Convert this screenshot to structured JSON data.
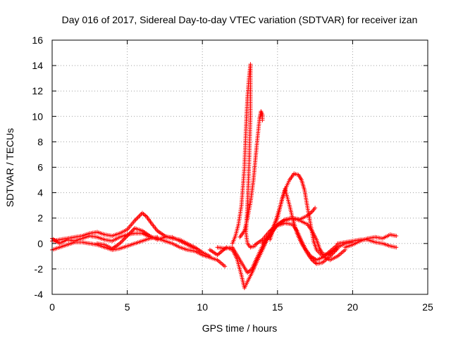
{
  "chart_data": {
    "type": "scatter",
    "title": "Day 016 of 2017, Sidereal Day-to-day VTEC variation (SDTVAR) for receiver izan",
    "xlabel": "GPS time / hours",
    "ylabel": "SDTVAR / TECUs",
    "xlim": [
      0,
      25
    ],
    "ylim": [
      -4,
      16
    ],
    "xticks": [
      0,
      5,
      10,
      15,
      20,
      25
    ],
    "yticks": [
      -4,
      -2,
      0,
      2,
      4,
      6,
      8,
      10,
      12,
      14,
      16
    ],
    "grid": true,
    "marker": "+",
    "color": "#ff0000",
    "series": [
      {
        "name": "trace-1",
        "points": [
          [
            0.0,
            0.2
          ],
          [
            0.5,
            0.3
          ],
          [
            1.0,
            0.4
          ],
          [
            1.5,
            0.5
          ],
          [
            2.0,
            0.6
          ],
          [
            2.5,
            0.8
          ],
          [
            3.0,
            0.9
          ],
          [
            3.5,
            0.7
          ],
          [
            4.0,
            0.6
          ],
          [
            4.5,
            0.8
          ],
          [
            5.0,
            1.1
          ],
          [
            5.5,
            1.8
          ],
          [
            6.0,
            2.4
          ],
          [
            6.3,
            2.1
          ],
          [
            6.6,
            1.6
          ],
          [
            7.0,
            1.0
          ],
          [
            7.5,
            0.6
          ],
          [
            8.0,
            0.4
          ],
          [
            8.5,
            0.3
          ],
          [
            9.0,
            0.0
          ],
          [
            9.5,
            -0.3
          ],
          [
            10.0,
            -0.7
          ],
          [
            10.5,
            -1.0
          ]
        ]
      },
      {
        "name": "trace-2",
        "points": [
          [
            0.0,
            -0.5
          ],
          [
            0.5,
            -0.3
          ],
          [
            1.0,
            -0.1
          ],
          [
            1.5,
            0.1
          ],
          [
            2.0,
            0.1
          ],
          [
            2.5,
            0.0
          ],
          [
            3.0,
            -0.1
          ],
          [
            3.5,
            -0.3
          ],
          [
            4.0,
            -0.5
          ],
          [
            4.5,
            -0.4
          ],
          [
            5.0,
            -0.2
          ],
          [
            5.5,
            0.0
          ],
          [
            6.0,
            0.2
          ],
          [
            6.5,
            0.4
          ],
          [
            7.0,
            0.5
          ]
        ]
      },
      {
        "name": "trace-3",
        "points": [
          [
            0.0,
            0.4
          ],
          [
            0.5,
            0.0
          ],
          [
            1.0,
            0.3
          ],
          [
            1.5,
            0.2
          ],
          [
            2.0,
            0.4
          ],
          [
            2.5,
            0.6
          ],
          [
            3.0,
            0.5
          ],
          [
            3.5,
            0.3
          ],
          [
            4.0,
            0.2
          ],
          [
            4.5,
            0.5
          ],
          [
            5.0,
            0.7
          ],
          [
            5.5,
            0.8
          ],
          [
            6.0,
            0.8
          ],
          [
            6.5,
            0.5
          ],
          [
            7.0,
            0.4
          ],
          [
            7.5,
            0.2
          ],
          [
            8.0,
            0.0
          ],
          [
            8.5,
            -0.3
          ],
          [
            9.0,
            -0.5
          ],
          [
            9.5,
            -0.6
          ],
          [
            10.0,
            -0.9
          ],
          [
            10.5,
            -1.1
          ],
          [
            11.0,
            -1.3
          ],
          [
            11.5,
            -1.8
          ]
        ]
      },
      {
        "name": "trace-4",
        "points": [
          [
            3.0,
            0.0
          ],
          [
            3.5,
            -0.1
          ],
          [
            4.0,
            -0.4
          ],
          [
            4.5,
            0.0
          ],
          [
            5.0,
            0.6
          ],
          [
            5.5,
            1.2
          ],
          [
            6.0,
            1.0
          ],
          [
            6.5,
            0.6
          ],
          [
            7.0,
            0.3
          ],
          [
            7.5,
            0.5
          ],
          [
            8.0,
            0.5
          ],
          [
            8.5,
            0.2
          ],
          [
            9.0,
            -0.1
          ],
          [
            9.5,
            -0.4
          ]
        ]
      },
      {
        "name": "trace-5",
        "points": [
          [
            10.5,
            -0.5
          ],
          [
            11.0,
            -0.9
          ],
          [
            11.3,
            -0.6
          ],
          [
            11.6,
            -0.3
          ],
          [
            12.0,
            -0.5
          ],
          [
            12.3,
            -1.2
          ],
          [
            12.6,
            -2.5
          ],
          [
            12.8,
            -3.5
          ],
          [
            13.0,
            -3.0
          ],
          [
            13.3,
            -2.3
          ],
          [
            13.6,
            -1.5
          ],
          [
            14.0,
            -0.5
          ],
          [
            14.3,
            0.3
          ],
          [
            14.6,
            0.9
          ],
          [
            15.0,
            1.5
          ],
          [
            15.5,
            1.8
          ],
          [
            16.0,
            2.0
          ],
          [
            16.5,
            1.8
          ],
          [
            17.0,
            1.5
          ],
          [
            17.3,
            1.0
          ],
          [
            17.6,
            0.3
          ],
          [
            17.8,
            -0.4
          ],
          [
            18.0,
            -0.8
          ],
          [
            18.3,
            -0.9
          ],
          [
            18.7,
            -0.6
          ],
          [
            19.0,
            -0.3
          ],
          [
            19.5,
            0.0
          ],
          [
            20.0,
            0.1
          ]
        ]
      },
      {
        "name": "trace-6",
        "points": [
          [
            12.0,
            0.0
          ],
          [
            12.2,
            0.6
          ],
          [
            12.4,
            1.5
          ],
          [
            12.6,
            3.0
          ],
          [
            12.8,
            6.0
          ],
          [
            12.9,
            9.0
          ],
          [
            13.0,
            11.5
          ],
          [
            13.1,
            13.0
          ],
          [
            13.2,
            14.1
          ],
          [
            13.2,
            10.0
          ],
          [
            13.1,
            6.0
          ],
          [
            13.0,
            3.0
          ],
          [
            12.9,
            0.8
          ],
          [
            13.0,
            0.0
          ],
          [
            13.2,
            -0.3
          ],
          [
            13.5,
            -0.2
          ]
        ]
      },
      {
        "name": "trace-7",
        "points": [
          [
            12.5,
            0.5
          ],
          [
            12.8,
            1.0
          ],
          [
            13.0,
            2.0
          ],
          [
            13.2,
            3.2
          ],
          [
            13.4,
            5.0
          ],
          [
            13.6,
            7.5
          ],
          [
            13.8,
            9.8
          ],
          [
            13.9,
            10.4
          ],
          [
            14.0,
            10.1
          ],
          [
            14.0,
            9.7
          ]
        ]
      },
      {
        "name": "trace-8",
        "points": [
          [
            11.0,
            -0.3
          ],
          [
            11.5,
            -0.4
          ],
          [
            12.0,
            -0.3
          ],
          [
            12.5,
            -1.3
          ],
          [
            13.0,
            -2.3
          ],
          [
            13.3,
            -2.0
          ],
          [
            13.6,
            -1.2
          ],
          [
            14.0,
            -0.2
          ],
          [
            14.5,
            0.8
          ],
          [
            15.0,
            2.0
          ],
          [
            15.3,
            3.5
          ],
          [
            15.6,
            4.5
          ],
          [
            15.8,
            5.0
          ],
          [
            16.1,
            5.5
          ],
          [
            16.4,
            5.4
          ],
          [
            16.6,
            5.0
          ],
          [
            16.8,
            4.2
          ],
          [
            17.0,
            2.8
          ],
          [
            17.2,
            1.5
          ],
          [
            17.4,
            0.2
          ],
          [
            17.6,
            -0.5
          ],
          [
            18.0,
            -1.0
          ],
          [
            18.5,
            -1.3
          ],
          [
            19.0,
            -1.0
          ],
          [
            19.5,
            -0.5
          ]
        ]
      },
      {
        "name": "trace-9",
        "points": [
          [
            14.5,
            0.3
          ],
          [
            14.8,
            1.5
          ],
          [
            15.2,
            3.0
          ],
          [
            15.5,
            4.3
          ],
          [
            15.8,
            3.0
          ],
          [
            16.0,
            2.0
          ],
          [
            16.3,
            0.8
          ],
          [
            16.6,
            0.0
          ],
          [
            17.0,
            -0.8
          ],
          [
            17.3,
            -1.3
          ],
          [
            17.6,
            -1.6
          ],
          [
            18.0,
            -1.5
          ],
          [
            18.5,
            -1.0
          ],
          [
            19.0,
            -0.4
          ]
        ]
      },
      {
        "name": "trace-10",
        "points": [
          [
            14.0,
            0.0
          ],
          [
            14.5,
            0.6
          ],
          [
            15.0,
            1.5
          ],
          [
            15.5,
            1.9
          ],
          [
            16.0,
            2.0
          ],
          [
            16.5,
            1.9
          ],
          [
            17.0,
            2.2
          ],
          [
            17.3,
            2.5
          ],
          [
            17.5,
            2.8
          ]
        ]
      },
      {
        "name": "trace-11",
        "points": [
          [
            13.5,
            -0.1
          ],
          [
            14.0,
            0.3
          ],
          [
            14.5,
            1.0
          ],
          [
            15.0,
            1.4
          ],
          [
            15.5,
            1.6
          ],
          [
            16.0,
            1.5
          ],
          [
            16.3,
            1.0
          ],
          [
            16.6,
            0.2
          ],
          [
            16.9,
            -0.5
          ],
          [
            17.2,
            -1.0
          ],
          [
            17.6,
            -1.3
          ],
          [
            18.0,
            -1.1
          ],
          [
            18.5,
            -0.6
          ],
          [
            19.0,
            -0.1
          ]
        ]
      },
      {
        "name": "trace-12",
        "points": [
          [
            19.0,
            0.0
          ],
          [
            19.5,
            0.1
          ],
          [
            20.0,
            0.2
          ],
          [
            20.5,
            0.3
          ],
          [
            21.0,
            0.3
          ],
          [
            21.5,
            0.1
          ],
          [
            22.0,
            0.0
          ],
          [
            22.5,
            -0.2
          ],
          [
            22.9,
            -0.3
          ]
        ]
      },
      {
        "name": "trace-13",
        "points": [
          [
            19.5,
            -0.3
          ],
          [
            20.0,
            -0.1
          ],
          [
            20.5,
            0.2
          ],
          [
            21.0,
            0.4
          ],
          [
            21.5,
            0.5
          ],
          [
            22.0,
            0.4
          ],
          [
            22.5,
            0.7
          ],
          [
            22.9,
            0.6
          ]
        ]
      }
    ]
  }
}
